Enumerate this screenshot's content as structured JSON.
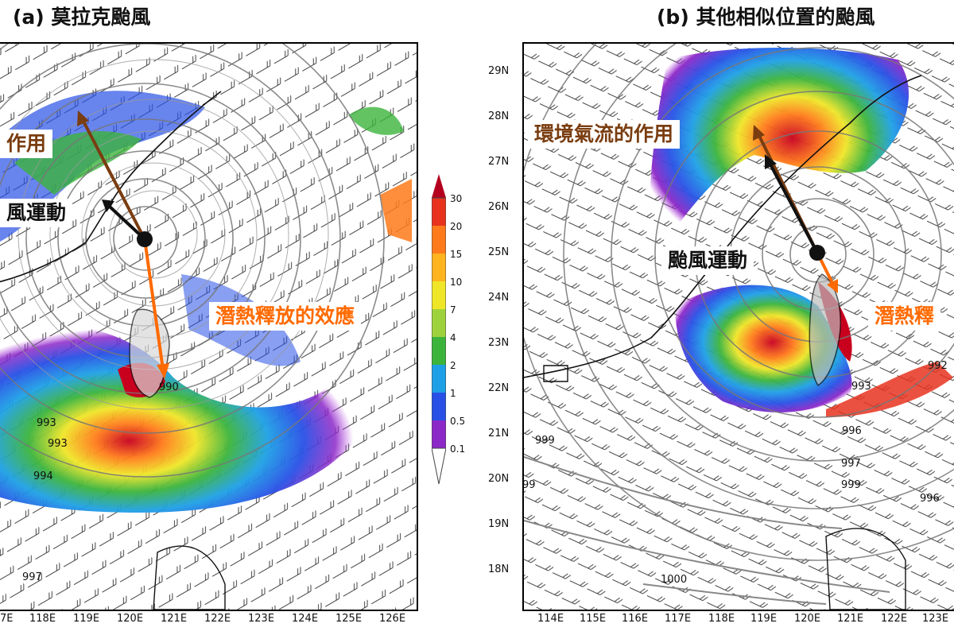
{
  "panels": {
    "a": {
      "title": "(a) 莫拉克颱風",
      "labels": {
        "env": "作用",
        "motion": "風運動",
        "latent": "潛熱釋放的效應"
      },
      "isobars": [
        "990",
        "993",
        "993",
        "994",
        "997"
      ],
      "lon_ticks": [
        "7E",
        "118E",
        "119E",
        "120E",
        "121E",
        "122E",
        "123E",
        "124E",
        "125E",
        "126E"
      ]
    },
    "b": {
      "title": "(b) 其他相似位置的颱風",
      "labels": {
        "env": "環境氣流的作用",
        "motion": "颱風運動",
        "latent": "潛熱釋"
      },
      "isobars": [
        "992",
        "993",
        "996",
        "997",
        "999",
        "996",
        "99",
        "999",
        "1000"
      ],
      "lat_ticks": [
        "29N",
        "28N",
        "27N",
        "26N",
        "25N",
        "24N",
        "23N",
        "22N",
        "21N",
        "20N",
        "19N",
        "18N"
      ],
      "lon_ticks": [
        "114E",
        "115E",
        "116E",
        "117E",
        "118E",
        "119E",
        "120E",
        "121E",
        "122E",
        "123E"
      ]
    }
  },
  "colorbar": {
    "levels": [
      "30",
      "20",
      "15",
      "10",
      "7",
      "4",
      "2",
      "1",
      "0.5",
      "0.1"
    ],
    "colors": [
      "#b4001e",
      "#e8321e",
      "#ff7a1a",
      "#ffb41e",
      "#f0e628",
      "#9ed23c",
      "#3cb43c",
      "#1ea0e6",
      "#2850e6",
      "#8c28c8",
      "#b43cdc"
    ]
  }
}
